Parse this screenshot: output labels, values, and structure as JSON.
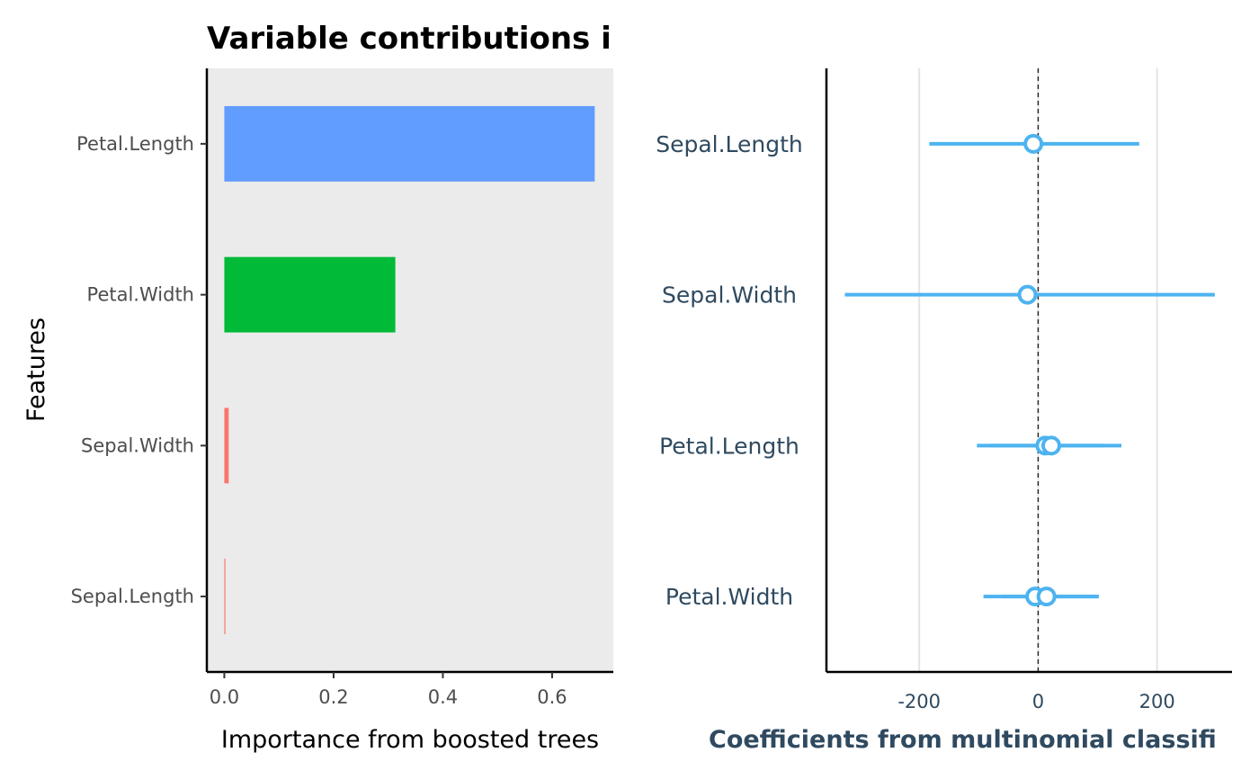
{
  "chart_data": [
    {
      "type": "bar",
      "orientation": "horizontal",
      "title": "Variable contributions i",
      "xlabel": "Importance from boosted trees",
      "ylabel": "Features",
      "categories": [
        "Sepal.Length",
        "Sepal.Width",
        "Petal.Width",
        "Petal.Length"
      ],
      "values": [
        0.002,
        0.008,
        0.313,
        0.678
      ],
      "bar_colors": [
        "#f8766d",
        "#f8766d",
        "#00ba38",
        "#619cff"
      ],
      "xlim": [
        -0.032,
        0.712
      ],
      "xticks": [
        "0.0",
        "0.2",
        "0.4",
        "0.6"
      ],
      "xtick_values": [
        0,
        0.2,
        0.4,
        0.6
      ],
      "panel_background": "#ebebeb",
      "grid": false,
      "legend": "none"
    },
    {
      "type": "scatter",
      "subtype": "coefficient-interval",
      "xlabel": "Coefficients from multinomial classifi",
      "categories": [
        "Petal.Width",
        "Petal.Length",
        "Sepal.Width",
        "Sepal.Length"
      ],
      "series": [
        {
          "points": [
            {
              "category": "Sepal.Length",
              "estimate": -8,
              "low": -183,
              "high": 170
            },
            {
              "category": "Sepal.Width",
              "estimate": -18,
              "low": -325,
              "high": 297
            },
            {
              "category": "Petal.Length",
              "estimate": 12,
              "low": -103,
              "high": 140
            },
            {
              "category": "Petal.Length",
              "estimate": 22,
              "low": -80,
              "high": 110
            },
            {
              "category": "Petal.Width",
              "estimate": -5,
              "low": -92,
              "high": 100
            },
            {
              "category": "Petal.Width",
              "estimate": 14,
              "low": -60,
              "high": 102
            }
          ]
        }
      ],
      "xlim": [
        -356,
        326
      ],
      "xticks": [
        "-200",
        "0",
        "200"
      ],
      "xtick_values": [
        -200,
        0,
        200
      ],
      "reference_line": 0,
      "color": "#4db3f0",
      "grid": true,
      "legend": "none"
    }
  ]
}
